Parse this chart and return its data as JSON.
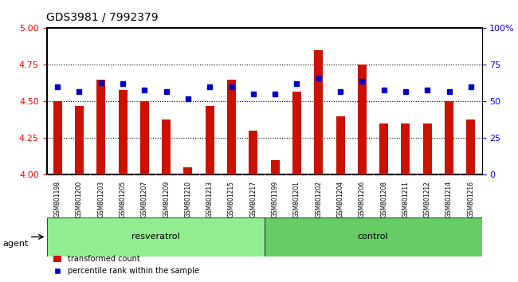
{
  "title": "GDS3981 / 7992379",
  "samples": [
    "GSM801198",
    "GSM801200",
    "GSM801203",
    "GSM801205",
    "GSM801207",
    "GSM801209",
    "GSM801210",
    "GSM801213",
    "GSM801215",
    "GSM801217",
    "GSM801199",
    "GSM801201",
    "GSM801202",
    "GSM801204",
    "GSM801206",
    "GSM801208",
    "GSM801211",
    "GSM801212",
    "GSM801214",
    "GSM801216"
  ],
  "bar_values": [
    4.5,
    4.47,
    4.65,
    4.58,
    4.5,
    4.38,
    4.05,
    4.47,
    4.65,
    4.3,
    4.1,
    4.57,
    4.85,
    4.4,
    4.75,
    4.35,
    4.35,
    4.35,
    4.5,
    4.38
  ],
  "percentile_values": [
    60,
    57,
    63,
    62,
    58,
    57,
    52,
    60,
    60,
    55,
    55,
    62,
    66,
    57,
    64,
    58,
    57,
    58,
    57,
    60
  ],
  "groups": [
    {
      "label": "resveratrol",
      "start": 0,
      "end": 10,
      "color": "#90ee90"
    },
    {
      "label": "control",
      "start": 10,
      "end": 20,
      "color": "#66cc66"
    }
  ],
  "bar_color": "#cc1100",
  "dot_color": "#0000cc",
  "ylim_left": [
    4.0,
    5.0
  ],
  "ylim_right": [
    0,
    100
  ],
  "yticks_left": [
    4.0,
    4.25,
    4.5,
    4.75,
    5.0
  ],
  "yticks_right": [
    0,
    25,
    50,
    75,
    100
  ],
  "ytick_labels_right": [
    "0",
    "25",
    "50",
    "75",
    "100%"
  ],
  "grid_values": [
    4.25,
    4.5,
    4.75
  ],
  "agent_label": "agent",
  "legend_bar": "transformed count",
  "legend_dot": "percentile rank within the sample",
  "bar_width": 0.4,
  "background_color": "#ffffff",
  "tick_area_color": "#c8c8c8"
}
